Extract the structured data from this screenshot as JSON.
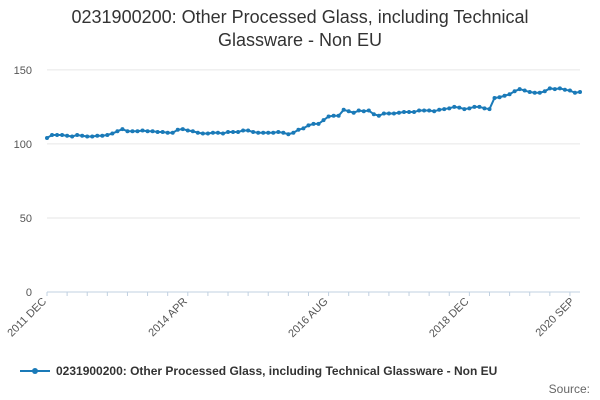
{
  "title_line1": "0231900200: Other Processed Glass, including Technical",
  "title_line2": "Glassware - Non EU",
  "legend_label": "0231900200: Other Processed Glass, including Technical Glassware - Non EU",
  "source_label": "Source:",
  "colors": {
    "series": "#1a7ab8",
    "grid": "#e6e6e6",
    "axis": "#c0d0e0"
  },
  "chart_data": {
    "type": "line",
    "ylim": [
      0,
      160
    ],
    "yticks": [
      0,
      50,
      100,
      150
    ],
    "x_tick_labels": [
      {
        "label": "2011 DEC",
        "index": 0
      },
      {
        "label": "2014 APR",
        "index": 28
      },
      {
        "label": "2016 AUG",
        "index": 56
      },
      {
        "label": "2018 DEC",
        "index": 84
      },
      {
        "label": "2020 SEP",
        "index": 105
      }
    ],
    "legend_position": "bottom-left",
    "grid": true,
    "series": [
      {
        "name": "0231900200: Other Processed Glass, including Technical Glassware - Non EU",
        "values": [
          104,
          106,
          106,
          106,
          105.5,
          105,
          106,
          105.5,
          105,
          105,
          105.5,
          105.5,
          106,
          107,
          108.5,
          110,
          108.5,
          108.5,
          108.5,
          109,
          108.5,
          108.5,
          108,
          108,
          107.5,
          107.5,
          109.5,
          110,
          109,
          108.5,
          107.5,
          107,
          107,
          107.5,
          107.5,
          107,
          108,
          108,
          108,
          109,
          109,
          108,
          107.5,
          107.5,
          107.5,
          107.5,
          108,
          107.5,
          106.5,
          107.5,
          109.5,
          110.5,
          112.5,
          113.5,
          113.5,
          116,
          118.5,
          119,
          119,
          123,
          122,
          121,
          122.5,
          122,
          122.5,
          120,
          119,
          120.5,
          120.5,
          120.5,
          121,
          121.5,
          121.5,
          121.5,
          122.5,
          122.5,
          122.5,
          122,
          123,
          123.5,
          124,
          125,
          124.5,
          123.5,
          124,
          125,
          125,
          124,
          123.5,
          131,
          131.5,
          132.5,
          133.5,
          135.5,
          137,
          136,
          135,
          134.5,
          134.5,
          135.5,
          137.5,
          137,
          137.5,
          136.5,
          136,
          134.5,
          135
        ]
      }
    ]
  }
}
